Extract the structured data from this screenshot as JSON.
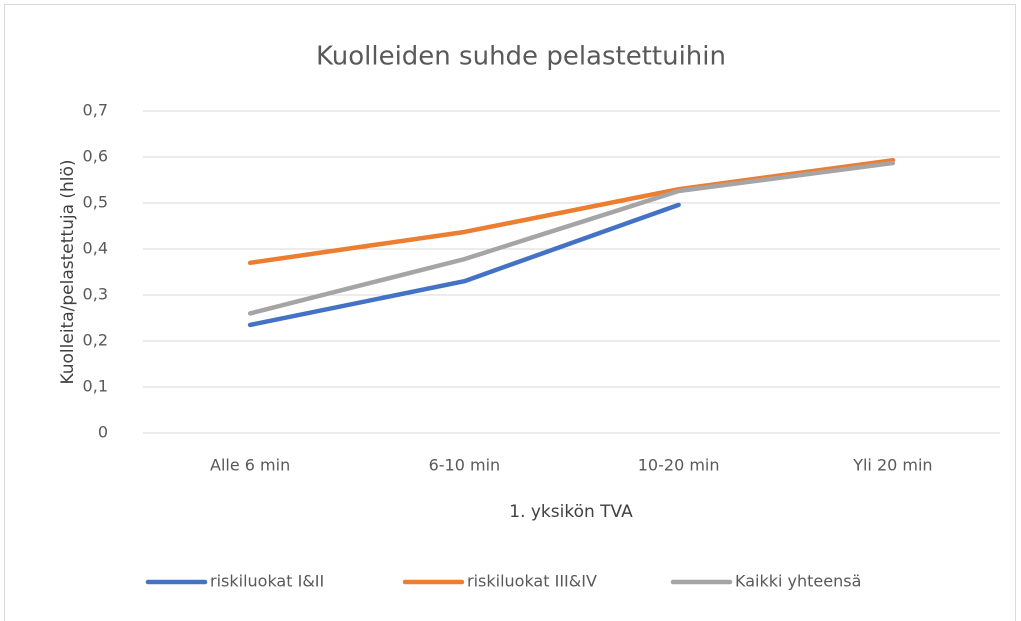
{
  "chart_data": {
    "type": "line",
    "title": "Kuolleiden suhde pelastettuihin",
    "x_label": "1. yksikön TVA",
    "y_label": "Kuolleita/pelastettuja (hlö)",
    "categories": [
      "Alle 6 min",
      "6-10 min",
      "10-20 min",
      "Yli 20 min"
    ],
    "series": [
      {
        "name": "riskiluokat I&II",
        "color": "#4472c4",
        "values": [
          0.235,
          0.33,
          0.496,
          null
        ]
      },
      {
        "name": "riskiluokat III&IV",
        "color": "#ed7d31",
        "values": [
          0.37,
          0.437,
          0.53,
          0.593
        ]
      },
      {
        "name": "Kaikki yhteensä",
        "color": "#a5a5a5",
        "values": [
          0.26,
          0.378,
          0.526,
          0.587
        ]
      }
    ],
    "ylim": [
      0,
      0.7
    ],
    "yticks": [
      0,
      {
        "value": 0.1,
        "label": "0,1"
      },
      {
        "value": 0.2,
        "label": "0,2"
      },
      {
        "value": 0.3,
        "label": "0,3"
      },
      {
        "value": 0.4,
        "label": "0,4"
      },
      {
        "value": 0.5,
        "label": "0,5"
      },
      {
        "value": 0.6,
        "label": "0,6"
      },
      {
        "value": 0.7,
        "label": "0,7"
      }
    ],
    "grid": true,
    "legend": "bottom"
  }
}
